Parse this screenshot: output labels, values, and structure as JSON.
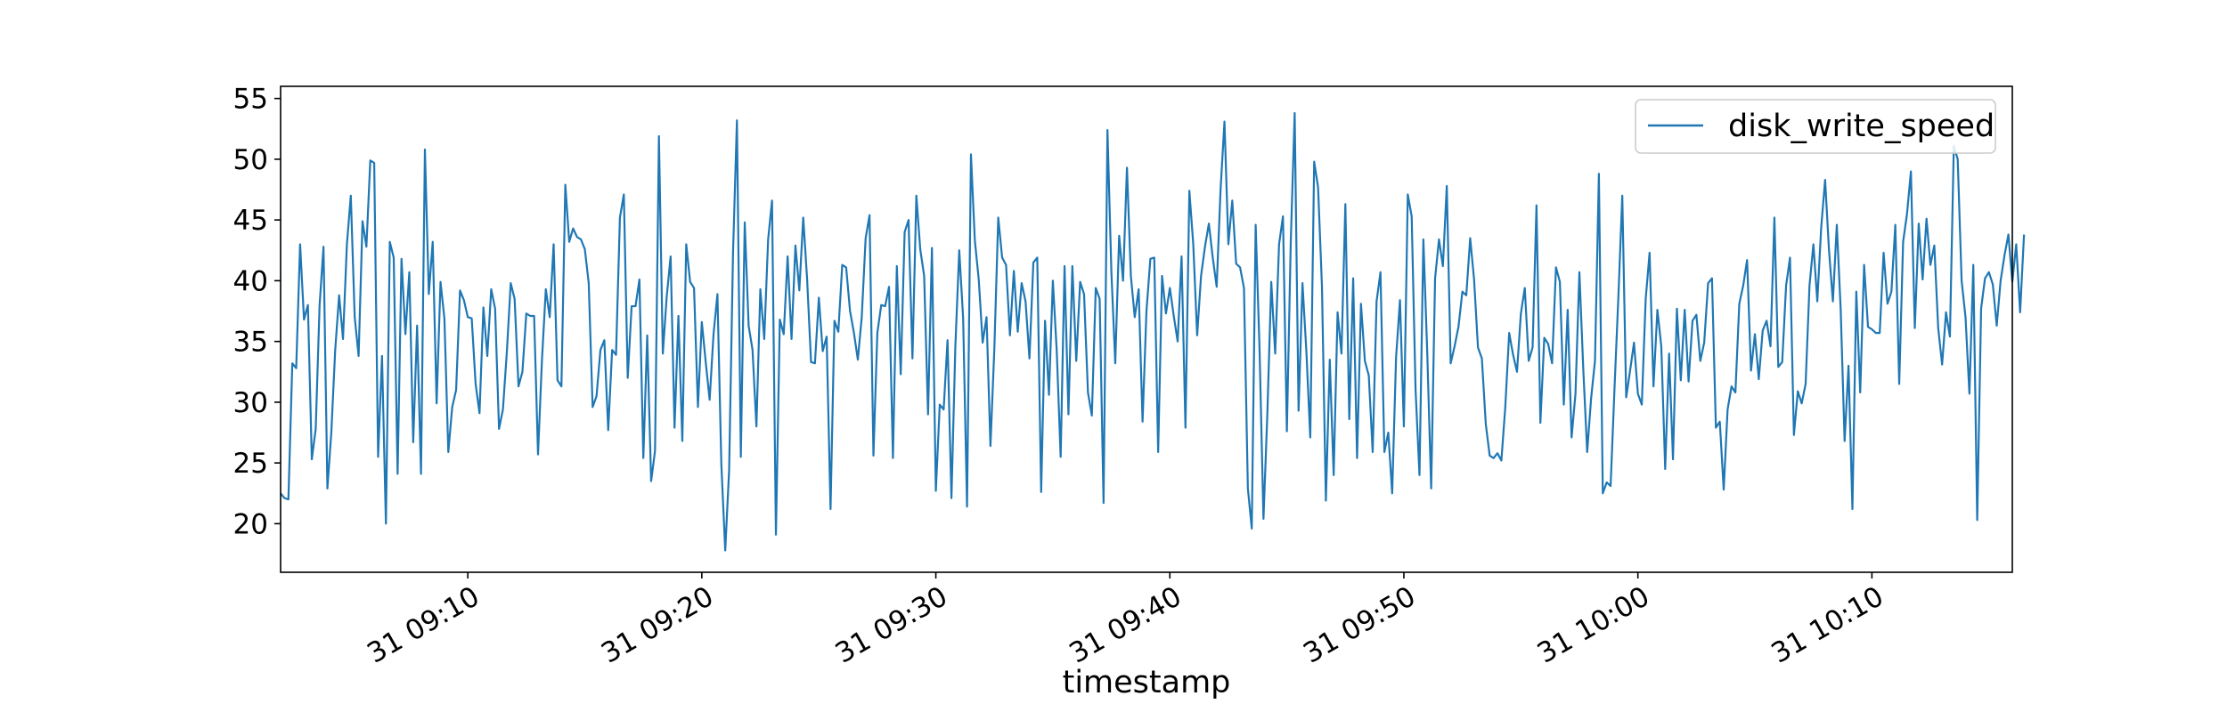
{
  "chart_data": {
    "type": "line",
    "title": "",
    "xlabel": "timestamp",
    "ylabel": "",
    "x_start": "31 09:02",
    "x_interval_seconds": 10,
    "xlim": [
      "31 09:02",
      "31 10:16"
    ],
    "ylim": [
      16,
      56
    ],
    "yticks": [
      20,
      25,
      30,
      35,
      40,
      45,
      50,
      55
    ],
    "xticks": [
      "31 09:10",
      "31 09:20",
      "31 09:30",
      "31 09:40",
      "31 09:50",
      "31 10:00",
      "31 10:10"
    ],
    "grid": false,
    "legend_position": "upper right",
    "colors": {
      "series": "#1f77b4",
      "axes": "#000000",
      "background": "#ffffff"
    },
    "series": [
      {
        "name": "disk_write_speed",
        "values": [
          22.5,
          22.1,
          22.0,
          33.2,
          32.8,
          43.0,
          36.8,
          38.0,
          25.3,
          27.8,
          38.0,
          42.8,
          22.9,
          27.5,
          34.3,
          38.8,
          35.2,
          43.0,
          47.0,
          37.0,
          33.8,
          44.9,
          42.8,
          49.9,
          49.7,
          25.5,
          33.8,
          20.0,
          43.2,
          41.9,
          24.1,
          41.8,
          35.6,
          40.7,
          26.7,
          36.3,
          24.1,
          50.8,
          38.9,
          43.2,
          29.9,
          39.9,
          36.9,
          25.9,
          29.6,
          31.0,
          39.2,
          38.4,
          37.0,
          36.9,
          31.5,
          29.1,
          37.8,
          33.8,
          39.3,
          37.7,
          27.8,
          29.4,
          34.1,
          39.8,
          38.5,
          31.3,
          32.5,
          37.3,
          37.1,
          37.1,
          25.7,
          33.4,
          39.3,
          37.0,
          43.0,
          31.8,
          31.3,
          47.9,
          43.2,
          44.3,
          43.6,
          43.4,
          42.6,
          39.8,
          29.6,
          30.5,
          34.3,
          35.1,
          27.7,
          34.3,
          33.9,
          45.2,
          47.1,
          32.0,
          37.9,
          37.9,
          40.1,
          25.4,
          35.5,
          23.5,
          26.0,
          51.9,
          34.0,
          38.7,
          42.0,
          27.9,
          37.1,
          26.8,
          43.0,
          39.9,
          39.4,
          29.6,
          36.6,
          33.3,
          30.2,
          35.6,
          38.9,
          24.9,
          17.8,
          24.4,
          42.3,
          53.2,
          25.5,
          44.8,
          36.3,
          34.3,
          28.0,
          39.3,
          35.2,
          43.4,
          46.6,
          19.1,
          36.8,
          35.6,
          42.0,
          35.2,
          42.9,
          39.2,
          45.2,
          40.1,
          33.3,
          33.2,
          38.6,
          34.2,
          35.4,
          21.2,
          36.7,
          35.8,
          41.3,
          41.1,
          37.5,
          35.7,
          33.5,
          37.0,
          43.5,
          45.4,
          25.6,
          35.7,
          38.0,
          37.9,
          39.5,
          25.4,
          41.2,
          32.3,
          44.0,
          45.0,
          33.6,
          47.0,
          42.6,
          40.4,
          29.0,
          42.7,
          22.7,
          29.8,
          29.4,
          35.1,
          22.1,
          34.6,
          42.5,
          36.9,
          21.4,
          50.4,
          43.3,
          40.1,
          34.9,
          37.0,
          26.4,
          34.4,
          45.2,
          41.9,
          41.3,
          35.5,
          40.8,
          35.8,
          39.8,
          38.3,
          33.6,
          41.5,
          41.9,
          22.6,
          36.7,
          30.6,
          40.0,
          34.2,
          25.5,
          41.2,
          29.0,
          41.2,
          33.4,
          39.9,
          38.9,
          30.8,
          28.9,
          39.4,
          38.5,
          21.7,
          52.4,
          40.8,
          33.2,
          43.7,
          40.0,
          49.3,
          40.4,
          37.0,
          39.3,
          28.4,
          37.5,
          41.8,
          41.9,
          25.9,
          40.4,
          37.3,
          39.4,
          37.1,
          35.0,
          42.0,
          27.9,
          47.4,
          43.0,
          35.5,
          40.4,
          42.8,
          44.7,
          41.9,
          39.5,
          47.5,
          53.1,
          43.0,
          46.6,
          41.4,
          41.1,
          39.4,
          22.9,
          19.6,
          44.6,
          34.3,
          20.4,
          29.1,
          39.9,
          34.0,
          43.0,
          45.3,
          27.6,
          43.2,
          53.8,
          29.3,
          39.8,
          34.2,
          27.1,
          49.8,
          47.7,
          39.5,
          21.9,
          33.5,
          24.0,
          37.4,
          34.0,
          46.3,
          28.6,
          40.2,
          25.4,
          38.1,
          33.4,
          32.2,
          25.9,
          38.3,
          40.7,
          25.9,
          27.5,
          22.5,
          33.7,
          38.4,
          28.0,
          47.1,
          45.3,
          31.0,
          24.0,
          43.4,
          34.0,
          22.9,
          40.2,
          43.4,
          41.2,
          47.8,
          33.2,
          34.6,
          36.2,
          39.1,
          38.8,
          43.5,
          40.1,
          34.5,
          33.6,
          28.2,
          25.6,
          25.4,
          25.8,
          25.2,
          29.6,
          35.7,
          33.9,
          32.5,
          37.3,
          39.4,
          33.4,
          34.5,
          46.2,
          28.3,
          35.3,
          34.8,
          33.2,
          41.1,
          39.9,
          29.8,
          37.6,
          27.1,
          30.7,
          40.7,
          32.7,
          25.9,
          30.3,
          33.4,
          48.8,
          22.5,
          23.4,
          23.1,
          31.1,
          38.7,
          47.0,
          30.4,
          32.6,
          34.9,
          30.7,
          29.8,
          38.5,
          42.3,
          31.3,
          37.6,
          34.6,
          24.5,
          34.0,
          25.3,
          37.7,
          31.8,
          37.6,
          31.7,
          36.7,
          37.2,
          33.4,
          34.9,
          39.8,
          40.2,
          27.9,
          28.4,
          22.8,
          29.4,
          31.3,
          30.8,
          38.1,
          39.6,
          41.7,
          32.6,
          35.6,
          31.9,
          35.9,
          36.7,
          34.6,
          45.2,
          32.9,
          33.3,
          39.6,
          41.9,
          27.3,
          30.9,
          29.9,
          31.5,
          39.6,
          43.0,
          38.3,
          44.4,
          48.3,
          42.5,
          38.3,
          44.6,
          37.6,
          26.8,
          33.0,
          21.2,
          39.1,
          30.8,
          41.3,
          36.2,
          36.0,
          35.7,
          35.7,
          42.3,
          38.1,
          39.1,
          44.6,
          31.5,
          43.2,
          45.5,
          49.0,
          36.1,
          44.7,
          40.1,
          45.1,
          41.3,
          42.9,
          36.1,
          33.1,
          37.4,
          35.4,
          51.1,
          50.0,
          40.0,
          37.0,
          30.7,
          41.3,
          20.3,
          37.7,
          40.2,
          40.7,
          39.7,
          36.3,
          40.0,
          42.1,
          43.8,
          39.9,
          43.0,
          37.4,
          43.8
        ]
      }
    ]
  }
}
